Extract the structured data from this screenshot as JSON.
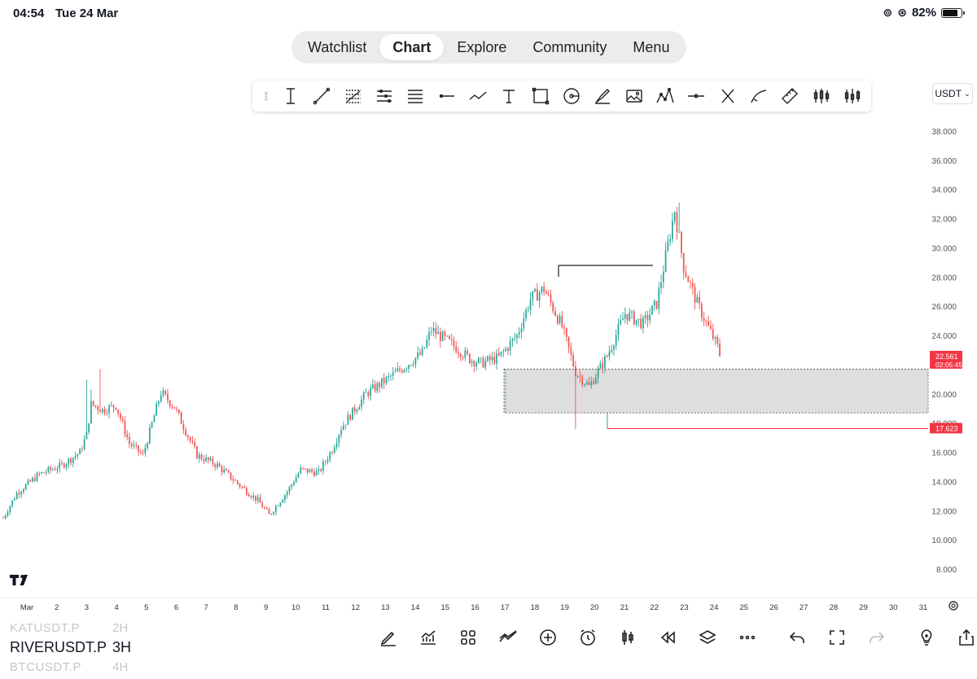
{
  "status": {
    "time": "04:54",
    "date": "Tue 24 Mar",
    "battery": "82%"
  },
  "nav": {
    "tabs": [
      "Watchlist",
      "Chart",
      "Explore",
      "Community",
      "Menu"
    ],
    "active": "Chart"
  },
  "toolbar": {
    "tools": [
      "vertical-line-tool-icon",
      "trend-line-tool-icon",
      "fib-retracement-icon",
      "pitchfork-icon",
      "parallel-channel-icon",
      "horizontal-ray-icon",
      "path-tool-icon",
      "text-tool-icon",
      "rectangle-tool-icon",
      "circle-tool-icon",
      "brush-tool-icon",
      "image-tool-icon",
      "pattern-tool-icon",
      "horizontal-line-icon",
      "cross-tool-icon",
      "curve-tool-icon",
      "ruler-tool-icon",
      "long-position-icon",
      "short-position-icon"
    ]
  },
  "currency": {
    "label": "USDT"
  },
  "chart_data": {
    "type": "candlestick",
    "symbol": "RIVERUSDT.P",
    "timeframe": "3H",
    "y_ticks": [
      "38.000",
      "36.000",
      "34.000",
      "32.000",
      "30.000",
      "28.000",
      "26.000",
      "24.000",
      "20.000",
      "18.000",
      "16.000",
      "14.000",
      "12.000",
      "10.000",
      "8.000"
    ],
    "ylim": [
      6.7,
      39.2
    ],
    "x_ticks": [
      "Mar",
      "2",
      "3",
      "4",
      "5",
      "6",
      "7",
      "8",
      "9",
      "10",
      "11",
      "12",
      "13",
      "14",
      "15",
      "16",
      "17",
      "18",
      "19",
      "20",
      "21",
      "22",
      "23",
      "24",
      "25",
      "26",
      "27",
      "28",
      "29",
      "30",
      "31"
    ],
    "price_label": {
      "value": "22.561",
      "countdown": "02:05:45",
      "price": 22.561
    },
    "level_label": {
      "value": "17.623",
      "price": 17.623
    },
    "zone": {
      "top": 21.7,
      "bottom": 18.7
    },
    "resistance_line": {
      "price": 28.8
    },
    "colors": {
      "up": "#26a69a",
      "down": "#ef5350",
      "label_red": "#f23645",
      "zone": "#dedede"
    },
    "ohlc_anchors": [
      [
        0,
        11.5
      ],
      [
        6,
        13.2
      ],
      [
        16,
        14.5
      ],
      [
        26,
        15.1
      ],
      [
        34,
        16.0
      ],
      [
        37,
        17.2
      ],
      [
        39,
        19.3
      ],
      [
        44,
        18.9
      ],
      [
        50,
        19.2
      ],
      [
        56,
        16.6
      ],
      [
        62,
        15.8
      ],
      [
        70,
        20.1
      ],
      [
        76,
        19.1
      ],
      [
        86,
        15.8
      ],
      [
        95,
        15.1
      ],
      [
        106,
        13.6
      ],
      [
        113,
        12.7
      ],
      [
        118,
        11.7
      ],
      [
        126,
        13.3
      ],
      [
        132,
        14.8
      ],
      [
        140,
        14.6
      ],
      [
        146,
        16.2
      ],
      [
        150,
        17.7
      ],
      [
        161,
        20.0
      ],
      [
        174,
        21.4
      ],
      [
        186,
        22.8
      ],
      [
        190,
        24.4
      ],
      [
        200,
        23.3
      ],
      [
        207,
        22.4
      ],
      [
        212,
        22.1
      ],
      [
        220,
        22.5
      ],
      [
        228,
        24.0
      ],
      [
        234,
        26.5
      ],
      [
        240,
        27.2
      ],
      [
        248,
        24.6
      ],
      [
        254,
        21.5
      ],
      [
        260,
        20.5
      ],
      [
        268,
        22.6
      ],
      [
        276,
        25.5
      ],
      [
        284,
        24.8
      ],
      [
        290,
        26.2
      ],
      [
        298,
        32.6
      ],
      [
        302,
        28.7
      ],
      [
        308,
        26.2
      ],
      [
        314,
        24.2
      ],
      [
        318,
        22.9
      ]
    ]
  },
  "bottom": {
    "symbols": [
      {
        "name": "KATUSDT.P",
        "tf": "2H",
        "main": false
      },
      {
        "name": "RIVERUSDT.P",
        "tf": "3H",
        "main": true
      },
      {
        "name": "BTCUSDT.P",
        "tf": "4H",
        "main": false
      }
    ]
  }
}
